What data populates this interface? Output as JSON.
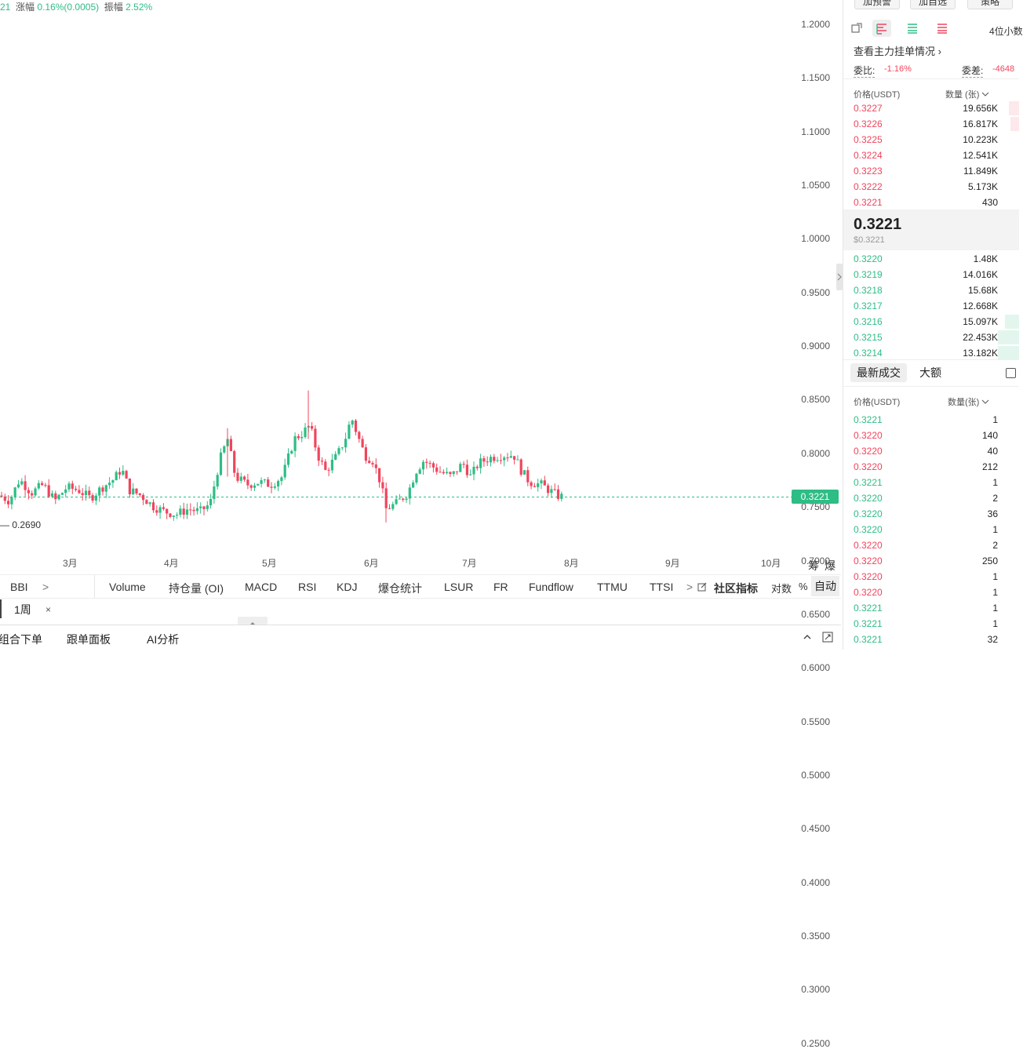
{
  "top_info": {
    "prefix": "21",
    "change_label": "涨幅",
    "change_value": "0.16%(0.0005)",
    "amplitude_label": "振幅",
    "amplitude_value": "2.52%"
  },
  "chart_data": {
    "type": "candlestick",
    "y_ticks": [
      "1.2000",
      "1.1500",
      "1.1000",
      "1.0500",
      "1.0000",
      "0.9500",
      "0.9000",
      "0.8500",
      "0.8000",
      "0.7500",
      "0.7000",
      "0.6500",
      "0.6000",
      "0.5500",
      "0.5000",
      "0.4500",
      "0.4000",
      "0.3500",
      "0.3000",
      "0.2500"
    ],
    "ylim": [
      0.225,
      1.2225
    ],
    "x_ticks": [
      "3月",
      "4月",
      "5月",
      "6月",
      "7月",
      "8月",
      "9月",
      "10月"
    ],
    "current_price": "0.3221",
    "low_label": "0.2690",
    "colors": {
      "up": "#2ebd85",
      "down": "#f0455d"
    }
  },
  "scale_labels": {
    "a": "筹",
    "b": "爆"
  },
  "indicators": {
    "items": [
      "BBI",
      ">",
      "Volume",
      "持仓量 (OI)",
      "MACD",
      "RSI",
      "KDJ",
      "爆仓统计",
      "LSUR",
      "FR",
      "Fundflow",
      "TTMU",
      "TTSI",
      ">"
    ],
    "community": "社区指标",
    "log": "对数",
    "percent": "%",
    "auto": "自动"
  },
  "tab": {
    "label": "1周",
    "close": "×"
  },
  "bottom_bar": {
    "combo_order": "组合下单",
    "copy_panel": "跟单面板",
    "ai": "AI分析"
  },
  "right_panel": {
    "top_buttons": [
      "加预警",
      "加自选",
      "策略"
    ],
    "precision": "4位小数",
    "main_orders_link": "查看主力挂单情况 ›",
    "ratio_label": "委比:",
    "ratio_value": "-1.16%",
    "diff_label": "委差:",
    "diff_value": "-4648",
    "ob_price_header": "价格(USDT)",
    "ob_qty_header": "数量 (张)",
    "asks": [
      {
        "price": "0.3227",
        "qty": "19.656K",
        "depth": 0.06
      },
      {
        "price": "0.3226",
        "qty": "16.817K",
        "depth": 0.05
      },
      {
        "price": "0.3225",
        "qty": "10.223K",
        "depth": 0
      },
      {
        "price": "0.3224",
        "qty": "12.541K",
        "depth": 0
      },
      {
        "price": "0.3223",
        "qty": "11.849K",
        "depth": 0
      },
      {
        "price": "0.3222",
        "qty": "5.173K",
        "depth": 0
      },
      {
        "price": "0.3221",
        "qty": "430",
        "depth": 0
      }
    ],
    "mid_price": "0.3221",
    "mid_price_usd": "$0.3221",
    "bids": [
      {
        "price": "0.3220",
        "qty": "1.48K",
        "depth": 0
      },
      {
        "price": "0.3219",
        "qty": "14.016K",
        "depth": 0
      },
      {
        "price": "0.3218",
        "qty": "15.68K",
        "depth": 0
      },
      {
        "price": "0.3217",
        "qty": "12.668K",
        "depth": 0
      },
      {
        "price": "0.3216",
        "qty": "15.097K",
        "depth": 0.08
      },
      {
        "price": "0.3215",
        "qty": "22.453K",
        "depth": 0.12
      },
      {
        "price": "0.3214",
        "qty": "13.182K",
        "depth": 0.12
      }
    ],
    "trades_tab_latest": "最新成交",
    "trades_tab_large": "大额",
    "trades_price_header": "价格(USDT)",
    "trades_qty_header": "数量(张)",
    "trades": [
      {
        "price": "0.3221",
        "qty": "1",
        "side": "buy"
      },
      {
        "price": "0.3220",
        "qty": "140",
        "side": "sell"
      },
      {
        "price": "0.3220",
        "qty": "40",
        "side": "sell"
      },
      {
        "price": "0.3220",
        "qty": "212",
        "side": "sell"
      },
      {
        "price": "0.3221",
        "qty": "1",
        "side": "buy"
      },
      {
        "price": "0.3220",
        "qty": "2",
        "side": "buy"
      },
      {
        "price": "0.3220",
        "qty": "36",
        "side": "buy"
      },
      {
        "price": "0.3220",
        "qty": "1",
        "side": "buy"
      },
      {
        "price": "0.3220",
        "qty": "2",
        "side": "sell"
      },
      {
        "price": "0.3220",
        "qty": "250",
        "side": "sell"
      },
      {
        "price": "0.3220",
        "qty": "1",
        "side": "sell"
      },
      {
        "price": "0.3220",
        "qty": "1",
        "side": "sell"
      },
      {
        "price": "0.3221",
        "qty": "1",
        "side": "buy"
      },
      {
        "price": "0.3221",
        "qty": "1",
        "side": "buy"
      },
      {
        "price": "0.3221",
        "qty": "32",
        "side": "buy"
      }
    ]
  }
}
